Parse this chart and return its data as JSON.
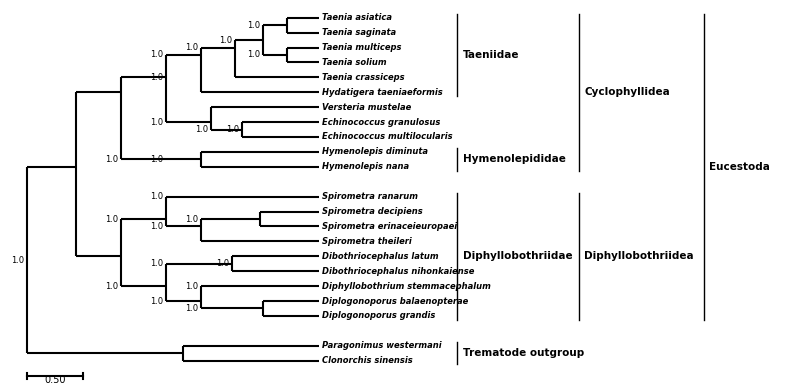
{
  "taxa_order_top_to_bottom": [
    "Taenia asiatica",
    "Taenia saginata",
    "Taenia multiceps",
    "Taenia solium",
    "Taenia crassiceps",
    "Hydatigera taeniaeformis",
    "Versteria mustelae",
    "Echinococcus granulosus",
    "Echinococcus multilocularis",
    "Hymenolepis diminuta",
    "Hymenolepis nana",
    "Spirometra ranarum",
    "Spirometra decipiens",
    "Spirometra erinaceieuropaei",
    "Spirometra theileri",
    "Dibothriocephalus latum",
    "Dibothriocephalus nihonkaiense",
    "Diphyllobothrium stemmacephalum",
    "Diplogonoporus balaenopterae",
    "Diplogonoporus grandis",
    "Paragonimus westermani",
    "Clonorchis sinensis"
  ],
  "background_color": "#ffffff",
  "line_color": "#000000",
  "figsize": [
    7.88,
    3.87
  ],
  "dpi": 100
}
